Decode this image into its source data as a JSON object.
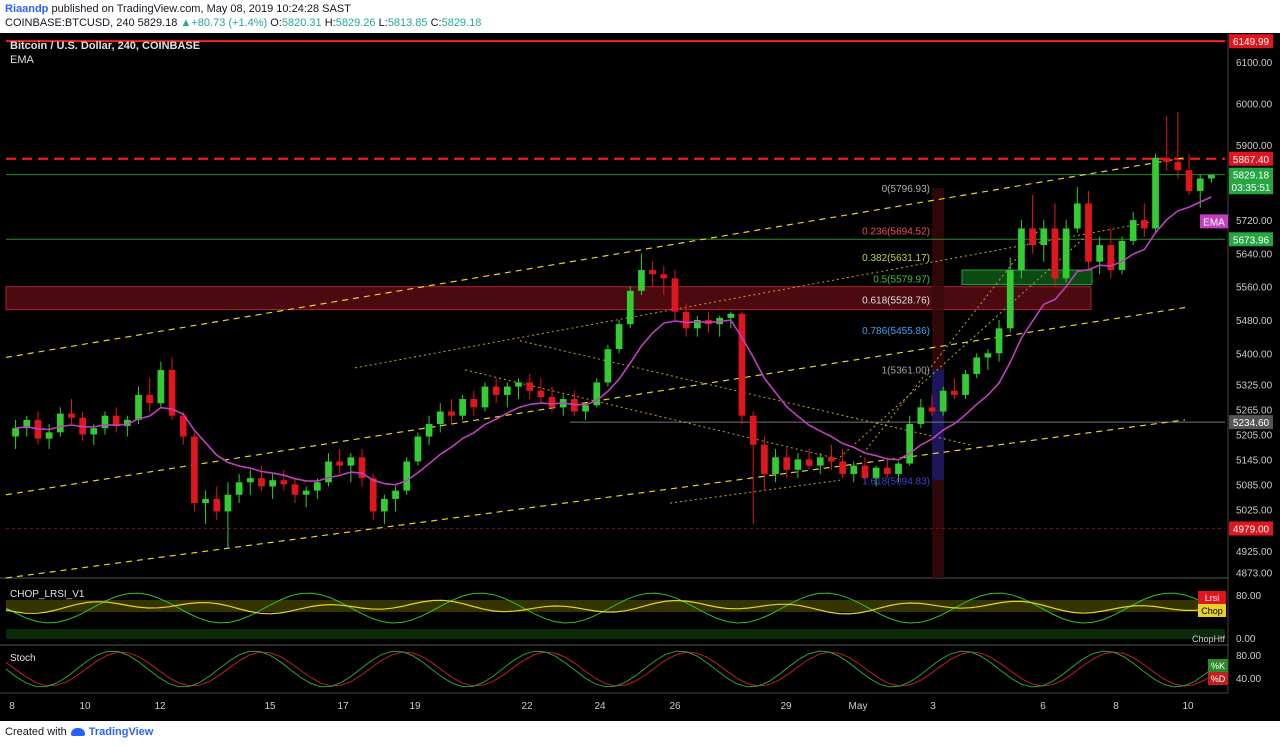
{
  "header": {
    "author": "Riaandp",
    "published_text": "published on TradingView.com, May 08, 2019 10:24:28 SAST",
    "symbol": "COINBASE:BTCUSD, 240",
    "last": "5829.18",
    "change_arrow": "▲",
    "change": "+80.73 (+1.4%)",
    "o_label": "O:",
    "o_value": "5820.31",
    "h_label": "H:",
    "h_value": "5829.26",
    "l_label": "L:",
    "l_value": "5813.85",
    "c_label": "C:",
    "c_value": "5829.18"
  },
  "footer": {
    "created_with": "Created with",
    "brand": "TradingView"
  },
  "colors": {
    "background": "#000000",
    "bull": "#33cc33",
    "bear": "#e0161e",
    "ema": "#c040c0",
    "resistance": "#ff2020",
    "channel": "#e6d22a",
    "axis_text": "#cccccc"
  },
  "chart_data": {
    "type": "candlestick",
    "title": "Bitcoin / U.S. Dollar, 240, COINBASE",
    "indicator_label": "EMA",
    "x_ticks": [
      "8",
      "10",
      "12",
      "15",
      "17",
      "19",
      "22",
      "24",
      "26",
      "29",
      "May",
      "3",
      "6",
      "8",
      "10"
    ],
    "y_ticks": [
      "6100.00",
      "6000.00",
      "5900.00",
      "5720.00",
      "5640.00",
      "5560.00",
      "5480.00",
      "5400.00",
      "5325.00",
      "5265.00",
      "5205.00",
      "5145.00",
      "5085.00",
      "5025.00",
      "4925.00",
      "4873.00"
    ],
    "ylim": [
      4860,
      6160
    ],
    "price_labels": [
      {
        "text": "6149.99",
        "value": 6149.99,
        "kind": "high"
      },
      {
        "text": "5867.40",
        "value": 5867.4,
        "kind": "resistance"
      },
      {
        "text": "5829.18",
        "value": 5829.18,
        "kind": "last"
      },
      {
        "text": "03:35:51",
        "value": 5799,
        "kind": "countdown"
      },
      {
        "text": "EMA",
        "value": 5717,
        "kind": "ema"
      },
      {
        "text": "5673.96",
        "value": 5673.96,
        "kind": "support"
      },
      {
        "text": "5234.60",
        "value": 5234.6,
        "kind": "level"
      },
      {
        "text": "4979.00",
        "value": 4979.0,
        "kind": "low"
      }
    ],
    "fib_levels": [
      {
        "text": "0(5796.93)",
        "value": 5796.93,
        "color": "#b0b0b0"
      },
      {
        "text": "0.236(5694.52)",
        "value": 5694.52,
        "color": "#f05050"
      },
      {
        "text": "0.382(5631.17)",
        "value": 5631.17,
        "color": "#c8d040"
      },
      {
        "text": "0.5(5579.97)",
        "value": 5579.97,
        "color": "#40c040"
      },
      {
        "text": "0.618(5528.76)",
        "value": 5528.76,
        "color": "#e0e0e0"
      },
      {
        "text": "0.786(5455.86)",
        "value": 5455.86,
        "color": "#40a0f0"
      },
      {
        "text": "1(5361.00)",
        "value": 5361.0,
        "color": "#a0a0a0"
      },
      {
        "text": "1.618(5094.83)",
        "value": 5094.83,
        "color": "#4040e0"
      }
    ],
    "candles": [
      [
        5200,
        5240,
        5170,
        5220
      ],
      [
        5220,
        5250,
        5200,
        5240
      ],
      [
        5240,
        5260,
        5180,
        5195
      ],
      [
        5195,
        5230,
        5170,
        5210
      ],
      [
        5210,
        5270,
        5200,
        5255
      ],
      [
        5255,
        5290,
        5230,
        5245
      ],
      [
        5245,
        5260,
        5190,
        5205
      ],
      [
        5205,
        5230,
        5180,
        5220
      ],
      [
        5220,
        5260,
        5205,
        5250
      ],
      [
        5250,
        5270,
        5210,
        5225
      ],
      [
        5225,
        5250,
        5200,
        5240
      ],
      [
        5240,
        5320,
        5230,
        5300
      ],
      [
        5300,
        5340,
        5260,
        5280
      ],
      [
        5280,
        5380,
        5270,
        5360
      ],
      [
        5360,
        5390,
        5240,
        5250
      ],
      [
        5250,
        5260,
        5180,
        5200
      ],
      [
        5200,
        5210,
        5020,
        5040
      ],
      [
        5040,
        5070,
        4990,
        5050
      ],
      [
        5050,
        5080,
        5000,
        5020
      ],
      [
        5020,
        5090,
        4930,
        5060
      ],
      [
        5060,
        5110,
        5040,
        5090
      ],
      [
        5090,
        5120,
        5060,
        5100
      ],
      [
        5100,
        5130,
        5070,
        5080
      ],
      [
        5080,
        5110,
        5050,
        5095
      ],
      [
        5095,
        5120,
        5070,
        5085
      ],
      [
        5085,
        5100,
        5040,
        5060
      ],
      [
        5060,
        5080,
        5030,
        5070
      ],
      [
        5070,
        5100,
        5050,
        5090
      ],
      [
        5090,
        5160,
        5080,
        5140
      ],
      [
        5140,
        5170,
        5110,
        5130
      ],
      [
        5130,
        5160,
        5090,
        5150
      ],
      [
        5150,
        5170,
        5080,
        5100
      ],
      [
        5100,
        5110,
        5000,
        5020
      ],
      [
        5020,
        5060,
        4990,
        5050
      ],
      [
        5050,
        5080,
        5020,
        5070
      ],
      [
        5070,
        5150,
        5060,
        5140
      ],
      [
        5140,
        5210,
        5130,
        5200
      ],
      [
        5200,
        5250,
        5180,
        5230
      ],
      [
        5230,
        5280,
        5210,
        5260
      ],
      [
        5260,
        5290,
        5230,
        5250
      ],
      [
        5250,
        5300,
        5240,
        5290
      ],
      [
        5290,
        5310,
        5250,
        5270
      ],
      [
        5270,
        5330,
        5260,
        5320
      ],
      [
        5320,
        5340,
        5280,
        5300
      ],
      [
        5300,
        5330,
        5270,
        5320
      ],
      [
        5320,
        5340,
        5290,
        5330
      ],
      [
        5330,
        5350,
        5290,
        5310
      ],
      [
        5310,
        5340,
        5280,
        5295
      ],
      [
        5295,
        5320,
        5260,
        5270
      ],
      [
        5270,
        5300,
        5250,
        5290
      ],
      [
        5290,
        5310,
        5250,
        5260
      ],
      [
        5260,
        5280,
        5240,
        5275
      ],
      [
        5275,
        5340,
        5270,
        5330
      ],
      [
        5330,
        5420,
        5320,
        5410
      ],
      [
        5410,
        5480,
        5400,
        5470
      ],
      [
        5470,
        5560,
        5460,
        5550
      ],
      [
        5550,
        5640,
        5540,
        5600
      ],
      [
        5600,
        5620,
        5560,
        5590
      ],
      [
        5590,
        5610,
        5540,
        5580
      ],
      [
        5580,
        5600,
        5480,
        5500
      ],
      [
        5500,
        5520,
        5440,
        5460
      ],
      [
        5460,
        5490,
        5440,
        5480
      ],
      [
        5480,
        5500,
        5450,
        5470
      ],
      [
        5470,
        5490,
        5440,
        5485
      ],
      [
        5485,
        5500,
        5460,
        5495
      ],
      [
        5495,
        5500,
        5230,
        5250
      ],
      [
        5250,
        5260,
        4990,
        5180
      ],
      [
        5180,
        5200,
        5070,
        5110
      ],
      [
        5110,
        5170,
        5090,
        5150
      ],
      [
        5150,
        5170,
        5100,
        5120
      ],
      [
        5120,
        5160,
        5100,
        5145
      ],
      [
        5145,
        5170,
        5120,
        5130
      ],
      [
        5130,
        5160,
        5110,
        5150
      ],
      [
        5150,
        5180,
        5120,
        5140
      ],
      [
        5140,
        5170,
        5100,
        5110
      ],
      [
        5110,
        5140,
        5090,
        5130
      ],
      [
        5130,
        5150,
        5090,
        5100
      ],
      [
        5100,
        5130,
        5080,
        5125
      ],
      [
        5125,
        5150,
        5100,
        5110
      ],
      [
        5110,
        5140,
        5090,
        5135
      ],
      [
        5135,
        5250,
        5130,
        5230
      ],
      [
        5230,
        5290,
        5220,
        5270
      ],
      [
        5270,
        5300,
        5250,
        5260
      ],
      [
        5260,
        5320,
        5250,
        5310
      ],
      [
        5310,
        5340,
        5290,
        5300
      ],
      [
        5300,
        5360,
        5290,
        5350
      ],
      [
        5350,
        5400,
        5340,
        5390
      ],
      [
        5390,
        5410,
        5360,
        5400
      ],
      [
        5400,
        5480,
        5380,
        5460
      ],
      [
        5460,
        5630,
        5450,
        5600
      ],
      [
        5600,
        5720,
        5580,
        5700
      ],
      [
        5700,
        5780,
        5640,
        5660
      ],
      [
        5660,
        5720,
        5620,
        5700
      ],
      [
        5700,
        5760,
        5560,
        5580
      ],
      [
        5580,
        5720,
        5570,
        5700
      ],
      [
        5700,
        5800,
        5690,
        5760
      ],
      [
        5760,
        5790,
        5600,
        5620
      ],
      [
        5620,
        5680,
        5590,
        5660
      ],
      [
        5660,
        5700,
        5580,
        5600
      ],
      [
        5600,
        5680,
        5590,
        5670
      ],
      [
        5670,
        5740,
        5660,
        5720
      ],
      [
        5720,
        5760,
        5680,
        5700
      ],
      [
        5700,
        5880,
        5690,
        5870
      ],
      [
        5870,
        5970,
        5840,
        5860
      ],
      [
        5860,
        5980,
        5820,
        5840
      ],
      [
        5840,
        5880,
        5780,
        5790
      ],
      [
        5790,
        5830,
        5750,
        5820
      ],
      [
        5820,
        5830,
        5810,
        5829
      ]
    ],
    "sub_panels": [
      {
        "title": "CHOP_LRSI_V1",
        "labels": [
          "80.00",
          "0.00"
        ],
        "tags": [
          "Lrsi",
          "Chop",
          "ChopHtf"
        ]
      },
      {
        "title": "Stoch",
        "labels": [
          "80.00",
          "40.00"
        ],
        "tags": [
          "%K",
          "%D"
        ]
      }
    ]
  }
}
